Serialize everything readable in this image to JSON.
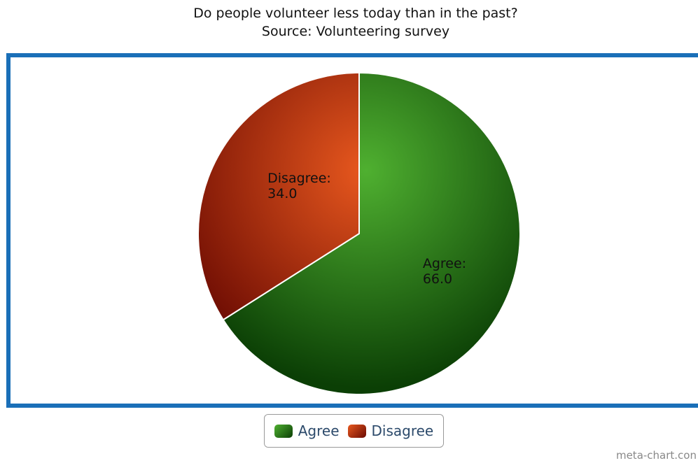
{
  "chart_data": {
    "type": "pie",
    "title": "Do people volunteer less today than in the past?",
    "subtitle": "Source: Volunteering survey",
    "categories": [
      "Agree",
      "Disagree"
    ],
    "values": [
      66.0,
      34.0
    ],
    "data_labels": [
      {
        "name": "Agree:",
        "value": "66.0"
      },
      {
        "name": "Disagree:",
        "value": "34.0"
      }
    ],
    "colors": {
      "Agree": {
        "light": "#4fb030",
        "dark": "#0b3f05"
      },
      "Disagree": {
        "light": "#e8581e",
        "dark": "#6a0a02"
      }
    },
    "frame_color": "#1a6fb8",
    "legend": {
      "position": "bottom-center",
      "items": [
        {
          "label": "Agree",
          "color": "#2e7d1f"
        },
        {
          "label": "Disagree",
          "color": "#b22a0c"
        }
      ]
    }
  },
  "watermark": "meta-chart.con"
}
